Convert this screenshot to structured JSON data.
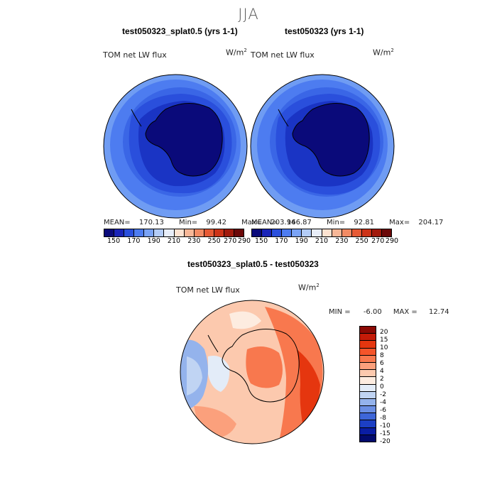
{
  "season": "JJA",
  "panels": [
    {
      "title": "test050323_splat0.5 (yrs 1-1)",
      "variable": "TOM net LW flux",
      "units_base": "W/m",
      "units_exp": "2",
      "mean_label": "MEAN=",
      "mean": "170.13",
      "min_label": "Min=",
      "min": "99.42",
      "max_label": "Max=",
      "max": "203.94"
    },
    {
      "title": "test050323 (yrs 1-1)",
      "variable": "TOM net LW flux",
      "units_base": "W/m",
      "units_exp": "2",
      "mean_label": "MEAN=",
      "mean": "166.87",
      "min_label": "Min=",
      "min": "92.81",
      "max_label": "Max=",
      "max": "204.17"
    }
  ],
  "diff": {
    "title": "test050323_splat0.5 - test050323",
    "variable": "TOM net LW flux",
    "units_base": "W/m",
    "units_exp": "2",
    "min_label": "MIN =",
    "min": "-6.00",
    "max_label": "MAX =",
    "max": "12.74"
  },
  "abs_colorbar": {
    "labels": [
      "150",
      "170",
      "190",
      "210",
      "230",
      "250",
      "270",
      "290"
    ],
    "colors": [
      "#0a0a7a",
      "#1a24b8",
      "#2a4fdc",
      "#4d7cf0",
      "#7aa3f5",
      "#b3ccf7",
      "#e8eef9",
      "#fde3d1",
      "#f7b797",
      "#f28b64",
      "#e65a35",
      "#cc3318",
      "#a11a0c",
      "#6b0808"
    ]
  },
  "diff_colorbar": {
    "labels": [
      "20",
      "15",
      "10",
      "8",
      "6",
      "4",
      "2",
      "0",
      "-2",
      "-4",
      "-6",
      "-8",
      "-10",
      "-15",
      "-20"
    ],
    "colors": [
      "#8b0a04",
      "#c41b08",
      "#e5360f",
      "#f4542a",
      "#f8784e",
      "#fba07c",
      "#fcc9ae",
      "#fdece0",
      "#e3ecf8",
      "#c0d4f3",
      "#94b3ec",
      "#6b8fe4",
      "#3e66d8",
      "#1c3fc4",
      "#0a1da3",
      "#020a6d"
    ]
  },
  "chart_data": [
    {
      "type": "map",
      "projection": "south polar stereographic",
      "title": "test050323_splat0.5 (yrs 1-1)",
      "variable": "TOM net LW flux",
      "units": "W/m2",
      "mean": 170.13,
      "min": 99.42,
      "max": 203.94,
      "levels": [
        150,
        160,
        170,
        180,
        190,
        200,
        210,
        220,
        230,
        240,
        250,
        260,
        270,
        280,
        290
      ]
    },
    {
      "type": "map",
      "projection": "south polar stereographic",
      "title": "test050323 (yrs 1-1)",
      "variable": "TOM net LW flux",
      "units": "W/m2",
      "mean": 166.87,
      "min": 92.81,
      "max": 204.17,
      "levels": [
        150,
        160,
        170,
        180,
        190,
        200,
        210,
        220,
        230,
        240,
        250,
        260,
        270,
        280,
        290
      ]
    },
    {
      "type": "map",
      "projection": "south polar stereographic",
      "title": "test050323_splat0.5 - test050323",
      "variable": "TOM net LW flux",
      "units": "W/m2",
      "min": -6.0,
      "max": 12.74,
      "levels": [
        -20,
        -15,
        -10,
        -8,
        -6,
        -4,
        -2,
        0,
        2,
        4,
        6,
        8,
        10,
        15,
        20
      ]
    }
  ]
}
